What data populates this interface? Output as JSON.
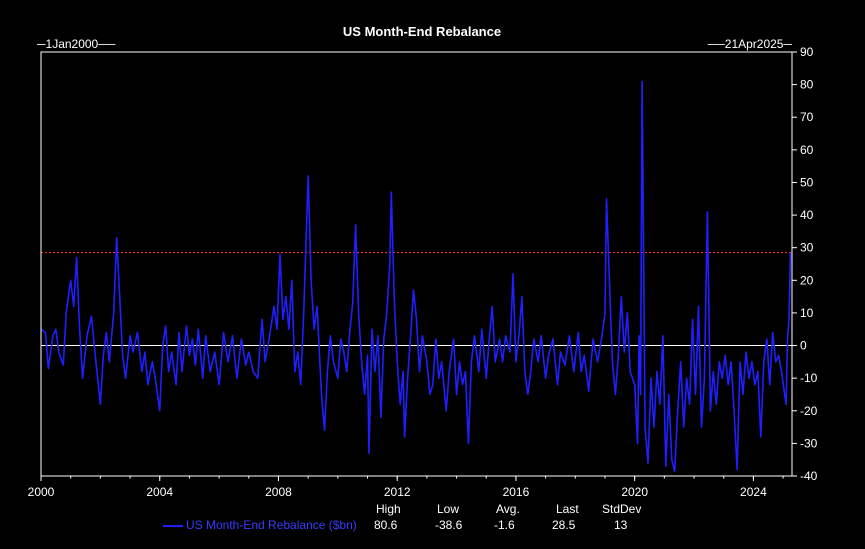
{
  "chart_data": {
    "type": "line",
    "title": "US Month-End Rebalance",
    "start_label": "1Jan2000",
    "end_label": "21Apr2025",
    "xlim": [
      2000,
      2025.3
    ],
    "ylim": [
      -40,
      90
    ],
    "x_ticks": [
      2000,
      2004,
      2008,
      2012,
      2016,
      2020,
      2024
    ],
    "y_ticks": [
      -40,
      -30,
      -20,
      -10,
      0,
      10,
      20,
      30,
      40,
      50,
      60,
      70,
      80,
      90
    ],
    "reference_line": {
      "value": 28.5,
      "color": "#ff2a2a",
      "style": "dotted"
    },
    "zero_line": {
      "value": 0,
      "color": "#ffffff"
    },
    "series": [
      {
        "name": "US Month-End Rebalance ($bn)",
        "color": "#1f1fff",
        "points": [
          [
            2000.0,
            5
          ],
          [
            2000.15,
            4
          ],
          [
            2000.25,
            -7
          ],
          [
            2000.4,
            3
          ],
          [
            2000.5,
            5
          ],
          [
            2000.6,
            -2
          ],
          [
            2000.75,
            -6
          ],
          [
            2000.85,
            10
          ],
          [
            2001.0,
            20
          ],
          [
            2001.1,
            12
          ],
          [
            2001.2,
            27
          ],
          [
            2001.3,
            5
          ],
          [
            2001.4,
            -10
          ],
          [
            2001.55,
            3
          ],
          [
            2001.7,
            9
          ],
          [
            2001.85,
            -5
          ],
          [
            2002.0,
            -18
          ],
          [
            2002.1,
            -3
          ],
          [
            2002.2,
            4
          ],
          [
            2002.3,
            -5
          ],
          [
            2002.45,
            10
          ],
          [
            2002.55,
            33
          ],
          [
            2002.65,
            15
          ],
          [
            2002.75,
            -3
          ],
          [
            2002.85,
            -10
          ],
          [
            2003.0,
            3
          ],
          [
            2003.1,
            -2
          ],
          [
            2003.25,
            4
          ],
          [
            2003.4,
            -8
          ],
          [
            2003.5,
            -2
          ],
          [
            2003.6,
            -12
          ],
          [
            2003.75,
            -5
          ],
          [
            2003.85,
            -10
          ],
          [
            2004.0,
            -20
          ],
          [
            2004.1,
            0
          ],
          [
            2004.2,
            6
          ],
          [
            2004.3,
            -8
          ],
          [
            2004.4,
            -2
          ],
          [
            2004.55,
            -12
          ],
          [
            2004.65,
            4
          ],
          [
            2004.75,
            -8
          ],
          [
            2004.9,
            6
          ],
          [
            2005.0,
            -3
          ],
          [
            2005.1,
            2
          ],
          [
            2005.2,
            -6
          ],
          [
            2005.3,
            5
          ],
          [
            2005.45,
            -10
          ],
          [
            2005.55,
            3
          ],
          [
            2005.7,
            -8
          ],
          [
            2005.85,
            -2
          ],
          [
            2006.0,
            -12
          ],
          [
            2006.15,
            4
          ],
          [
            2006.3,
            -5
          ],
          [
            2006.45,
            3
          ],
          [
            2006.6,
            -10
          ],
          [
            2006.75,
            2
          ],
          [
            2006.9,
            -6
          ],
          [
            2007.0,
            -2
          ],
          [
            2007.15,
            -8
          ],
          [
            2007.3,
            -10
          ],
          [
            2007.45,
            8
          ],
          [
            2007.55,
            -5
          ],
          [
            2007.7,
            3
          ],
          [
            2007.85,
            12
          ],
          [
            2007.95,
            5
          ],
          [
            2008.05,
            28
          ],
          [
            2008.15,
            8
          ],
          [
            2008.25,
            15
          ],
          [
            2008.35,
            5
          ],
          [
            2008.45,
            20
          ],
          [
            2008.55,
            -8
          ],
          [
            2008.65,
            -2
          ],
          [
            2008.75,
            -12
          ],
          [
            2008.85,
            10
          ],
          [
            2009.0,
            52
          ],
          [
            2009.1,
            20
          ],
          [
            2009.2,
            5
          ],
          [
            2009.3,
            12
          ],
          [
            2009.45,
            -15
          ],
          [
            2009.55,
            -26
          ],
          [
            2009.65,
            -8
          ],
          [
            2009.75,
            3
          ],
          [
            2009.85,
            -5
          ],
          [
            2010.0,
            -10
          ],
          [
            2010.1,
            2
          ],
          [
            2010.2,
            -2
          ],
          [
            2010.3,
            -8
          ],
          [
            2010.4,
            4
          ],
          [
            2010.5,
            13
          ],
          [
            2010.6,
            37
          ],
          [
            2010.7,
            10
          ],
          [
            2010.8,
            -5
          ],
          [
            2010.9,
            -15
          ],
          [
            2011.0,
            -3
          ],
          [
            2011.05,
            -33
          ],
          [
            2011.15,
            5
          ],
          [
            2011.25,
            -8
          ],
          [
            2011.35,
            3
          ],
          [
            2011.45,
            -22
          ],
          [
            2011.55,
            2
          ],
          [
            2011.65,
            10
          ],
          [
            2011.75,
            25
          ],
          [
            2011.8,
            47
          ],
          [
            2011.9,
            15
          ],
          [
            2012.0,
            -5
          ],
          [
            2012.1,
            -18
          ],
          [
            2012.2,
            -8
          ],
          [
            2012.25,
            -28
          ],
          [
            2012.35,
            -10
          ],
          [
            2012.45,
            3
          ],
          [
            2012.55,
            17
          ],
          [
            2012.65,
            8
          ],
          [
            2012.75,
            -8
          ],
          [
            2012.85,
            3
          ],
          [
            2013.0,
            -5
          ],
          [
            2013.1,
            -15
          ],
          [
            2013.2,
            -12
          ],
          [
            2013.3,
            2
          ],
          [
            2013.4,
            -10
          ],
          [
            2013.5,
            -5
          ],
          [
            2013.65,
            -20
          ],
          [
            2013.75,
            -8
          ],
          [
            2013.9,
            2
          ],
          [
            2014.0,
            -15
          ],
          [
            2014.1,
            -5
          ],
          [
            2014.2,
            -12
          ],
          [
            2014.3,
            -8
          ],
          [
            2014.4,
            -30
          ],
          [
            2014.5,
            -5
          ],
          [
            2014.6,
            3
          ],
          [
            2014.75,
            -8
          ],
          [
            2014.85,
            5
          ],
          [
            2015.0,
            -10
          ],
          [
            2015.1,
            2
          ],
          [
            2015.2,
            12
          ],
          [
            2015.3,
            -5
          ],
          [
            2015.45,
            2
          ],
          [
            2015.55,
            -5
          ],
          [
            2015.65,
            3
          ],
          [
            2015.8,
            -2
          ],
          [
            2015.9,
            22
          ],
          [
            2016.0,
            -5
          ],
          [
            2016.1,
            3
          ],
          [
            2016.2,
            15
          ],
          [
            2016.3,
            -8
          ],
          [
            2016.4,
            -15
          ],
          [
            2016.5,
            -8
          ],
          [
            2016.6,
            2
          ],
          [
            2016.75,
            -5
          ],
          [
            2016.85,
            3
          ],
          [
            2017.0,
            -10
          ],
          [
            2017.1,
            -3
          ],
          [
            2017.25,
            2
          ],
          [
            2017.4,
            -12
          ],
          [
            2017.5,
            -2
          ],
          [
            2017.65,
            -6
          ],
          [
            2017.8,
            3
          ],
          [
            2017.95,
            -8
          ],
          [
            2018.1,
            4
          ],
          [
            2018.2,
            -8
          ],
          [
            2018.3,
            -3
          ],
          [
            2018.45,
            -14
          ],
          [
            2018.6,
            2
          ],
          [
            2018.75,
            -5
          ],
          [
            2018.9,
            3
          ],
          [
            2019.0,
            10
          ],
          [
            2019.05,
            45
          ],
          [
            2019.15,
            20
          ],
          [
            2019.25,
            -5
          ],
          [
            2019.35,
            -15
          ],
          [
            2019.45,
            -3
          ],
          [
            2019.55,
            15
          ],
          [
            2019.65,
            -2
          ],
          [
            2019.75,
            10
          ],
          [
            2019.85,
            -8
          ],
          [
            2020.0,
            -12
          ],
          [
            2020.1,
            -30
          ],
          [
            2020.15,
            3
          ],
          [
            2020.2,
            -15
          ],
          [
            2020.25,
            81
          ],
          [
            2020.35,
            -25
          ],
          [
            2020.45,
            -36
          ],
          [
            2020.55,
            -10
          ],
          [
            2020.65,
            -25
          ],
          [
            2020.75,
            -8
          ],
          [
            2020.85,
            -18
          ],
          [
            2020.95,
            3
          ],
          [
            2021.05,
            -37
          ],
          [
            2021.15,
            -15
          ],
          [
            2021.25,
            -35
          ],
          [
            2021.35,
            -38.6
          ],
          [
            2021.45,
            -20
          ],
          [
            2021.55,
            -5
          ],
          [
            2021.65,
            -25
          ],
          [
            2021.75,
            -10
          ],
          [
            2021.85,
            -18
          ],
          [
            2021.95,
            8
          ],
          [
            2022.05,
            -15
          ],
          [
            2022.15,
            12
          ],
          [
            2022.25,
            -25
          ],
          [
            2022.35,
            -10
          ],
          [
            2022.45,
            41
          ],
          [
            2022.55,
            -20
          ],
          [
            2022.65,
            -8
          ],
          [
            2022.75,
            -18
          ],
          [
            2022.85,
            -5
          ],
          [
            2022.95,
            -10
          ],
          [
            2023.05,
            -3
          ],
          [
            2023.15,
            -12
          ],
          [
            2023.25,
            -5
          ],
          [
            2023.35,
            -20
          ],
          [
            2023.45,
            -38
          ],
          [
            2023.55,
            -5
          ],
          [
            2023.65,
            -15
          ],
          [
            2023.75,
            -2
          ],
          [
            2023.85,
            -10
          ],
          [
            2023.95,
            -5
          ],
          [
            2024.05,
            -12
          ],
          [
            2024.15,
            -8
          ],
          [
            2024.25,
            -28
          ],
          [
            2024.35,
            -5
          ],
          [
            2024.45,
            2
          ],
          [
            2024.55,
            -12
          ],
          [
            2024.65,
            4
          ],
          [
            2024.75,
            -5
          ],
          [
            2024.85,
            -3
          ],
          [
            2024.95,
            -8
          ],
          [
            2025.05,
            -15
          ],
          [
            2025.1,
            -18
          ],
          [
            2025.15,
            2
          ],
          [
            2025.2,
            8
          ],
          [
            2025.25,
            28.5
          ]
        ]
      }
    ],
    "stats": {
      "headers": [
        "High",
        "Low",
        "Avg.",
        "Last",
        "StdDev"
      ],
      "values": [
        "80.6",
        "-38.6",
        "-1.6",
        "28.5",
        "13"
      ]
    }
  }
}
